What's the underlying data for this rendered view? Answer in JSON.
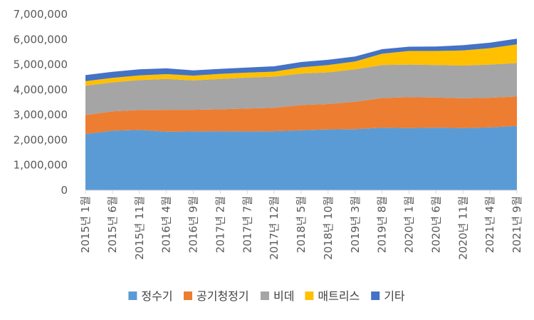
{
  "chart_data": {
    "type": "area",
    "stacked": true,
    "ylim": [
      0,
      7000000
    ],
    "y_ticks": [
      0,
      1000000,
      2000000,
      3000000,
      4000000,
      5000000,
      6000000,
      7000000
    ],
    "y_tick_labels": [
      "0",
      "1,000,000",
      "2,000,000",
      "3,000,000",
      "4,000,000",
      "5,000,000",
      "6,000,000",
      "7,000,000"
    ],
    "x_tick_labels": [
      "2015년 1월",
      "2015년 6월",
      "2015년 11월",
      "2016년 4월",
      "2016년 9월",
      "2017년 2월",
      "2017년 7월",
      "2017년 12월",
      "2018년 5월",
      "2018년 10월",
      "2019년 3월",
      "2019년 8월",
      "2020년 1월",
      "2020년 6월",
      "2020년 11월",
      "2021년 4월",
      "2021년 9월"
    ],
    "tick_step_months": 5,
    "grid": false,
    "legend_position": "bottom",
    "series": [
      {
        "name": "정수기",
        "color": "#5B9BD5",
        "values": [
          2240000,
          2370000,
          2400000,
          2330000,
          2340000,
          2350000,
          2340000,
          2350000,
          2390000,
          2420000,
          2430000,
          2490000,
          2470000,
          2490000,
          2470000,
          2500000,
          2560000
        ]
      },
      {
        "name": "공기청정기",
        "color": "#ED7D31",
        "values": [
          750000,
          770000,
          790000,
          870000,
          860000,
          870000,
          910000,
          930000,
          1000000,
          1010000,
          1090000,
          1180000,
          1230000,
          1200000,
          1190000,
          1180000,
          1170000
        ]
      },
      {
        "name": "비데",
        "color": "#A5A5A5",
        "values": [
          1170000,
          1150000,
          1190000,
          1230000,
          1170000,
          1210000,
          1230000,
          1240000,
          1250000,
          1260000,
          1290000,
          1310000,
          1300000,
          1290000,
          1300000,
          1320000,
          1330000
        ]
      },
      {
        "name": "매트리스",
        "color": "#FFC000",
        "values": [
          180000,
          180000,
          190000,
          190000,
          190000,
          200000,
          200000,
          200000,
          250000,
          290000,
          310000,
          450000,
          540000,
          560000,
          600000,
          650000,
          740000
        ]
      },
      {
        "name": "기타",
        "color": "#4472C4",
        "values": [
          240000,
          240000,
          240000,
          230000,
          210000,
          200000,
          200000,
          210000,
          210000,
          210000,
          200000,
          180000,
          170000,
          180000,
          210000,
          220000,
          230000
        ]
      }
    ]
  }
}
